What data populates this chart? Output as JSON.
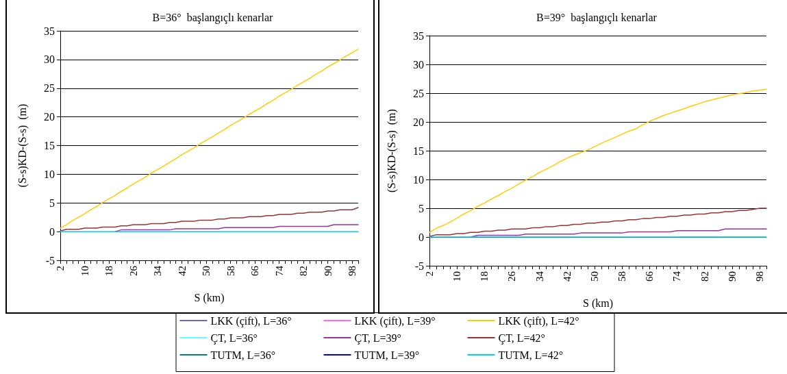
{
  "chart_data": [
    {
      "type": "line",
      "title": "B=36°  başlangıçlı kenarlar",
      "xlabel": "S (km)",
      "ylabel": "(S-s)KD-(S-s)  (m)",
      "categories": [
        "2",
        null,
        null,
        null,
        "10",
        null,
        null,
        null,
        "18",
        null,
        null,
        null,
        "26",
        null,
        null,
        null,
        "34",
        null,
        null,
        null,
        "42",
        null,
        null,
        null,
        "50",
        null,
        null,
        null,
        "58",
        null,
        null,
        null,
        "66",
        null,
        null,
        null,
        "74",
        null,
        null,
        null,
        "82",
        null,
        null,
        null,
        "90",
        null,
        null,
        null,
        "98",
        null
      ],
      "ylim": [
        -5,
        35
      ],
      "yticks": [
        -5,
        0,
        5,
        10,
        15,
        20,
        25,
        30,
        35
      ],
      "grid": "y",
      "legend": "bottom",
      "marker": "none",
      "line_style": "solid",
      "series": [
        {
          "name": "LKK (çift), L=36°",
          "color": "#6666cc",
          "values": [
            null,
            null,
            null,
            null,
            null,
            null,
            null,
            null,
            null,
            null,
            null,
            null,
            null,
            null,
            null,
            null,
            null,
            null,
            null,
            null,
            null,
            null,
            null,
            null,
            null,
            null,
            null,
            null,
            null,
            null,
            null,
            null,
            null,
            null,
            null,
            null,
            null,
            null,
            null,
            null,
            null,
            null,
            null,
            null,
            null,
            null,
            null,
            null,
            null,
            null
          ]
        },
        {
          "name": "LKK (çift), L=39°",
          "color": "#ff66ff",
          "values": [
            null,
            null,
            null,
            null,
            null,
            null,
            null,
            null,
            null,
            null,
            null,
            null,
            null,
            null,
            null,
            null,
            null,
            null,
            null,
            null,
            null,
            null,
            null,
            null,
            null,
            null,
            null,
            null,
            null,
            null,
            null,
            null,
            null,
            null,
            null,
            null,
            null,
            null,
            null,
            null,
            null,
            null,
            null,
            null,
            null,
            null,
            null,
            null,
            null,
            null
          ]
        },
        {
          "name": "LKK (çift), L=42°",
          "color": "#ffcc00",
          "values": [
            0.6,
            1.2,
            1.9,
            2.5,
            3.1,
            3.8,
            4.4,
            5.1,
            5.7,
            6.3,
            7.0,
            7.6,
            8.3,
            8.9,
            9.5,
            10.2,
            10.8,
            11.4,
            12.1,
            12.7,
            13.4,
            14.0,
            14.6,
            15.3,
            15.9,
            16.5,
            17.2,
            17.8,
            18.5,
            19.1,
            19.7,
            20.4,
            21.0,
            21.6,
            22.3,
            22.9,
            23.6,
            24.2,
            24.8,
            25.5,
            26.1,
            26.7,
            27.4,
            28.0,
            28.7,
            29.3,
            29.9,
            30.6,
            31.2,
            31.8
          ]
        },
        {
          "name": "ÇT, L=36°",
          "color": "#66ffff",
          "values": [
            null,
            null,
            null,
            null,
            null,
            null,
            null,
            null,
            null,
            null,
            null,
            null,
            null,
            null,
            null,
            null,
            null,
            null,
            null,
            null,
            null,
            null,
            null,
            null,
            null,
            null,
            null,
            null,
            null,
            null,
            null,
            null,
            null,
            null,
            null,
            null,
            null,
            null,
            null,
            null,
            null,
            null,
            null,
            null,
            null,
            null,
            null,
            null,
            null,
            null
          ]
        },
        {
          "name": "ÇT, L=39°",
          "color": "#993399",
          "values": [
            null,
            null,
            null,
            null,
            null,
            null,
            null,
            null,
            null,
            0,
            0.3,
            0.3,
            0.3,
            0.3,
            0.3,
            0.3,
            0.3,
            0.3,
            0.3,
            0.5,
            0.5,
            0.5,
            0.5,
            0.5,
            0.5,
            0.5,
            0.5,
            0.7,
            0.7,
            0.7,
            0.7,
            0.7,
            0.7,
            0.7,
            0.7,
            0.7,
            0.9,
            0.9,
            0.9,
            0.9,
            0.9,
            0.9,
            0.9,
            0.9,
            0.9,
            1.2,
            1.2,
            1.2,
            1.2,
            1.2
          ]
        },
        {
          "name": "ÇT, L=42°",
          "color": "#993333",
          "values": [
            0.1,
            0.4,
            0.4,
            0.4,
            0.6,
            0.6,
            0.6,
            0.8,
            0.8,
            0.8,
            1.0,
            1.0,
            1.2,
            1.2,
            1.2,
            1.4,
            1.4,
            1.4,
            1.6,
            1.6,
            1.8,
            1.8,
            1.8,
            2.0,
            2.0,
            2.0,
            2.2,
            2.2,
            2.4,
            2.4,
            2.4,
            2.6,
            2.6,
            2.6,
            2.8,
            2.8,
            3.0,
            3.0,
            3.0,
            3.2,
            3.2,
            3.4,
            3.4,
            3.4,
            3.6,
            3.6,
            3.8,
            3.8,
            3.8,
            4.2
          ]
        },
        {
          "name": "TUTM, L=36°",
          "color": "#008080",
          "values": [
            null,
            null,
            null,
            null,
            null,
            null,
            null,
            null,
            null,
            null,
            null,
            null,
            null,
            null,
            null,
            null,
            null,
            null,
            null,
            null,
            null,
            null,
            null,
            null,
            null,
            null,
            null,
            null,
            null,
            null,
            null,
            null,
            null,
            null,
            null,
            null,
            null,
            null,
            null,
            null,
            null,
            null,
            null,
            null,
            null,
            null,
            null,
            null,
            null,
            null
          ]
        },
        {
          "name": "TUTM, L=39°",
          "color": "#0000ff",
          "values": [
            null,
            null,
            null,
            null,
            null,
            null,
            null,
            null,
            null,
            null,
            null,
            null,
            null,
            null,
            null,
            null,
            null,
            null,
            null,
            null,
            null,
            null,
            null,
            null,
            null,
            null,
            null,
            null,
            null,
            null,
            null,
            null,
            null,
            null,
            null,
            null,
            null,
            null,
            null,
            null,
            null,
            null,
            null,
            null,
            null,
            null,
            null,
            null,
            null,
            null
          ]
        },
        {
          "name": "TUTM, L=42°",
          "color": "#00ccff",
          "values": [
            0,
            0,
            0,
            0,
            0,
            0,
            0,
            0,
            0,
            0,
            0,
            0,
            0,
            0,
            0,
            0,
            0,
            0,
            0,
            0,
            0,
            0,
            0,
            0,
            0,
            0,
            0,
            0,
            0,
            0,
            0,
            0,
            0,
            0,
            0,
            0,
            0,
            0,
            0,
            0,
            0,
            0,
            0,
            0,
            0,
            0,
            0,
            0,
            0,
            0
          ]
        }
      ]
    },
    {
      "type": "line",
      "title": "B=39°  başlangıçlı kenarlar",
      "xlabel": "S (km)",
      "ylabel": "(S-s)KD-(S-s)  (m)",
      "categories": [
        "2",
        null,
        null,
        null,
        "10",
        null,
        null,
        null,
        "18",
        null,
        null,
        null,
        "26",
        null,
        null,
        null,
        "34",
        null,
        null,
        null,
        "42",
        null,
        null,
        null,
        "50",
        null,
        null,
        null,
        "58",
        null,
        null,
        null,
        "66",
        null,
        null,
        null,
        "74",
        null,
        null,
        null,
        "82",
        null,
        null,
        null,
        "90",
        null,
        null,
        null,
        "98",
        null
      ],
      "ylim": [
        -5,
        35
      ],
      "yticks": [
        -5,
        0,
        5,
        10,
        15,
        20,
        25,
        30,
        35
      ],
      "grid": "y",
      "marker": "none",
      "line_style": "solid",
      "series": [
        {
          "color": "#ffcc00",
          "values": [
            0.8,
            1.5,
            2.0,
            2.6,
            3.3,
            4.0,
            4.6,
            5.3,
            5.9,
            6.6,
            7.2,
            7.9,
            8.5,
            9.2,
            9.9,
            10.5,
            11.2,
            11.8,
            12.4,
            13.1,
            13.7,
            14.2,
            14.7,
            15.1,
            15.7,
            16.3,
            16.8,
            17.3,
            17.9,
            18.4,
            18.8,
            19.5,
            20.1,
            20.6,
            21.1,
            21.5,
            21.9,
            22.3,
            22.7,
            23.1,
            23.5,
            23.8,
            24.1,
            24.4,
            24.7,
            24.9,
            25.1,
            25.4,
            25.5,
            25.7
          ]
        },
        {
          "color": "#993399",
          "values": [
            null,
            null,
            null,
            null,
            null,
            null,
            0,
            0.3,
            0.3,
            0.3,
            0.3,
            0.3,
            0.3,
            0.3,
            0.5,
            0.5,
            0.5,
            0.5,
            0.5,
            0.5,
            0.5,
            0.5,
            0.7,
            0.7,
            0.7,
            0.7,
            0.7,
            0.7,
            0.7,
            0.9,
            0.9,
            0.9,
            0.9,
            0.9,
            0.9,
            0.9,
            1.1,
            1.1,
            1.1,
            1.1,
            1.1,
            1.1,
            1.1,
            1.4,
            1.4,
            1.4,
            1.4,
            1.4,
            1.4,
            1.4
          ]
        },
        {
          "color": "#993333",
          "values": [
            0.1,
            0.4,
            0.4,
            0.4,
            0.6,
            0.6,
            0.8,
            0.8,
            1.0,
            1.0,
            1.2,
            1.2,
            1.4,
            1.4,
            1.4,
            1.6,
            1.6,
            1.8,
            1.8,
            2.0,
            2.0,
            2.2,
            2.2,
            2.4,
            2.4,
            2.6,
            2.6,
            2.8,
            2.8,
            3.0,
            3.0,
            3.2,
            3.2,
            3.4,
            3.4,
            3.6,
            3.6,
            3.8,
            3.8,
            4.0,
            4.0,
            4.2,
            4.2,
            4.4,
            4.4,
            4.6,
            4.6,
            4.8,
            5.0,
            5.0
          ]
        },
        {
          "color": "#00ccff",
          "values": [
            0,
            0,
            0,
            0,
            0,
            0,
            0,
            0,
            0,
            0,
            0,
            0,
            0,
            0,
            0,
            0,
            0,
            0,
            0,
            0,
            0,
            0,
            0,
            0,
            0,
            0,
            0,
            0,
            0,
            0,
            0,
            0,
            0,
            0,
            0,
            0,
            0,
            0,
            0,
            0,
            0,
            0,
            0,
            0,
            0,
            0,
            0,
            0,
            0,
            0
          ]
        }
      ]
    }
  ]
}
